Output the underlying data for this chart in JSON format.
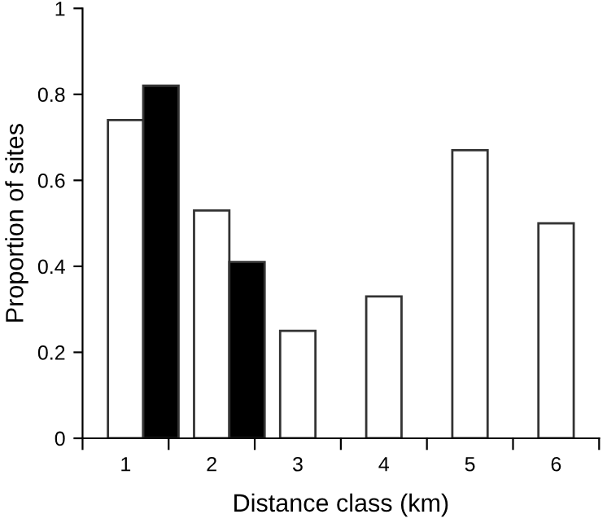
{
  "chart_data": {
    "type": "bar",
    "xlabel": "Distance class (km)",
    "ylabel": "Proportion of sites",
    "categories": [
      "1",
      "2",
      "3",
      "4",
      "5",
      "6"
    ],
    "series": [
      {
        "color": "#ffffff",
        "values": [
          0.74,
          0.53,
          0.25,
          0.33,
          0.67,
          0.5
        ]
      },
      {
        "color": "#000000",
        "values": [
          0.82,
          0.41,
          null,
          null,
          null,
          null
        ]
      }
    ],
    "ylim": [
      0,
      1
    ],
    "yticks": [
      0,
      0.2,
      0.4,
      0.6,
      0.8,
      1
    ],
    "grid": false,
    "legend": false
  }
}
